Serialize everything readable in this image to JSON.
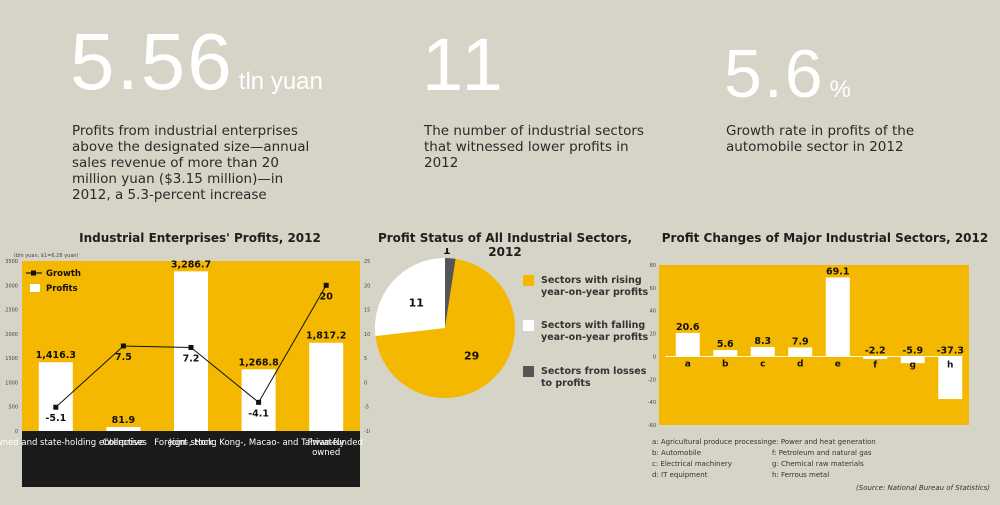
{
  "stats": [
    {
      "value": "5.56",
      "unit": "tln yuan",
      "desc": "Profits from industrial enterprises above the designated size—annual sales revenue of more than 20 million yuan ($3.15 million)—in 2012, a 5.3-percent increase"
    },
    {
      "value": "11",
      "unit": "",
      "desc": "The number of industrial sectors that witnessed lower profits in 2012"
    },
    {
      "value": "5.6",
      "unit": "%",
      "desc": "Growth rate in profits of the automobile sector in 2012"
    }
  ],
  "source": "(Source: National Bureau of Statistics)",
  "colors": {
    "accent": "#f5b800",
    "background": "#d6d3c7",
    "dark": "#2a2a2a",
    "grey_slice": "#555555"
  },
  "chart_data": [
    {
      "type": "bar",
      "title": "Industrial Enterprises' Profits, 2012",
      "ylabel": "(bln yuan, $1=6.28 yuan)",
      "categories": [
        "State-owned and state-holding enterprises",
        "Collective",
        "Joint stock",
        "Foreign-, Hong Kong-, Macao- and Taiwan-funded",
        "Privately owned"
      ],
      "series": [
        {
          "name": "Profits",
          "type": "bar",
          "values": [
            1416.3,
            81.9,
            3286.7,
            1268.8,
            1817.2
          ],
          "labels": [
            "1,416.3",
            "81.9",
            "3,286.7",
            "1,268.8",
            "1,817.2"
          ]
        },
        {
          "name": "Growth",
          "type": "line",
          "values": [
            -5.1,
            7.5,
            7.2,
            -4.1,
            20
          ],
          "labels": [
            "-5.1",
            "7.5",
            "7.2",
            "-4.1",
            "20"
          ]
        }
      ],
      "ylim": [
        0,
        3500
      ],
      "y_ticks": [
        "0",
        "500",
        "1000",
        "1500",
        "2000",
        "2500",
        "3000",
        "3500"
      ],
      "y2lim": [
        -10,
        25
      ],
      "y2_ticks": [
        "-10",
        "-5",
        "0",
        "5",
        "10",
        "15",
        "20",
        "25"
      ],
      "legend": "top-left"
    },
    {
      "type": "pie",
      "title": "Profit Status of All Industrial Sectors, 2012",
      "slices": [
        {
          "label": "Sectors with rising year-on-year profits",
          "value": 29,
          "value_label": "29",
          "color": "#f5b800"
        },
        {
          "label": "Sectors with falling year-on-year profits",
          "value": 11,
          "value_label": "11",
          "color": "#ffffff"
        },
        {
          "label": "Sectors from losses to profits",
          "value": 1,
          "value_label": "1",
          "color": "#555555"
        }
      ],
      "legend": "right"
    },
    {
      "type": "bar",
      "title": "Profit Changes of Major Industrial Sectors, 2012",
      "categories": [
        "a",
        "b",
        "c",
        "d",
        "e",
        "f",
        "g",
        "h"
      ],
      "values": [
        20.6,
        5.6,
        8.3,
        7.9,
        69.1,
        -2.2,
        -5.9,
        -37.3
      ],
      "labels": [
        "20.6",
        "5.6",
        "8.3",
        "7.9",
        "69.1",
        "-2.2",
        "-5.9",
        "-37.3"
      ],
      "ylim": [
        -60,
        80
      ],
      "y_ticks": [
        "-60",
        "-40",
        "-20",
        "0",
        "20",
        "40",
        "60",
        "80"
      ],
      "key": [
        "a: Agricultural produce processing",
        "b: Automobile",
        "c: Electrical machinery",
        "d: IT equipment",
        "e: Power and heat generation",
        "f: Petroleum and natural gas",
        "g: Chemical raw materials",
        "h: Ferrous metal"
      ]
    }
  ]
}
